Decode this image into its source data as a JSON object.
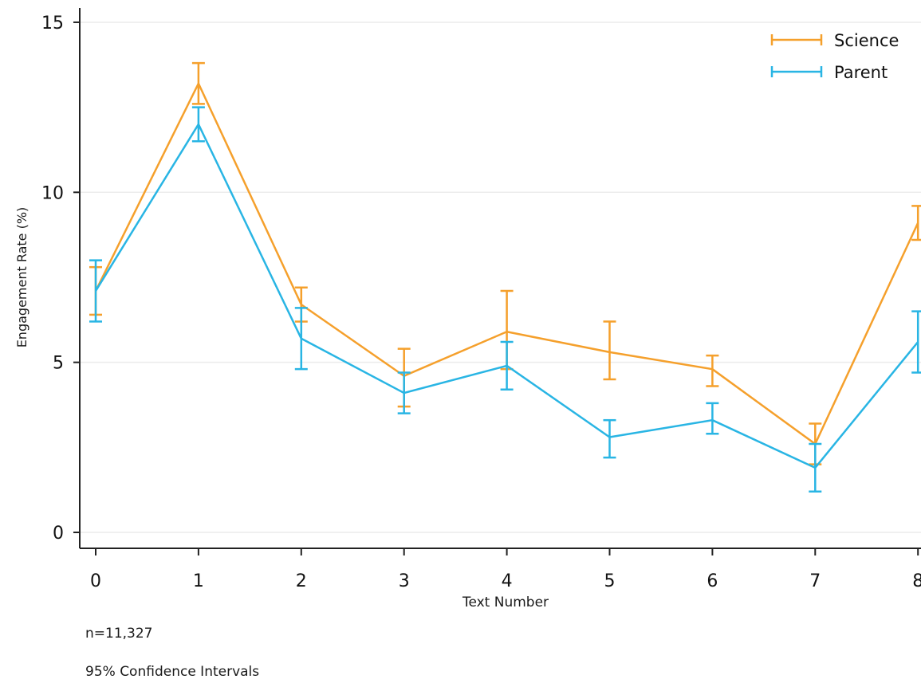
{
  "chart_data": {
    "type": "line",
    "title": "",
    "xlabel": "Text Number",
    "ylabel": "Engagement Rate (%)",
    "x": [
      0,
      1,
      2,
      3,
      4,
      5,
      6,
      7,
      8
    ],
    "x_ticks": [
      "0",
      "1",
      "2",
      "3",
      "4",
      "5",
      "6",
      "7",
      "8"
    ],
    "y_ticks": [
      "0",
      "5",
      "10",
      "15"
    ],
    "xlim": [
      0,
      8
    ],
    "ylim": [
      0,
      15
    ],
    "grid": "horizontal",
    "legend_position": "top-right",
    "series": [
      {
        "name": "Science",
        "color": "#f5a02c",
        "values": [
          7.1,
          13.2,
          6.7,
          4.6,
          5.9,
          5.3,
          4.8,
          2.6,
          9.1
        ],
        "ci_low": [
          6.4,
          12.6,
          6.2,
          3.7,
          4.8,
          4.5,
          4.3,
          2.0,
          8.6
        ],
        "ci_high": [
          7.8,
          13.8,
          7.2,
          5.4,
          7.1,
          6.2,
          5.2,
          3.2,
          9.6
        ]
      },
      {
        "name": "Parent",
        "color": "#29b5e4",
        "values": [
          7.1,
          12.0,
          5.7,
          4.1,
          4.9,
          2.8,
          3.3,
          1.9,
          5.6
        ],
        "ci_low": [
          6.2,
          11.5,
          4.8,
          3.5,
          4.2,
          2.2,
          2.9,
          1.2,
          4.7
        ],
        "ci_high": [
          8.0,
          12.5,
          6.6,
          4.7,
          5.6,
          3.3,
          3.8,
          2.6,
          6.5
        ]
      }
    ]
  },
  "notes": {
    "sample_size": "n=11,327",
    "confidence": "95% Confidence Intervals"
  }
}
